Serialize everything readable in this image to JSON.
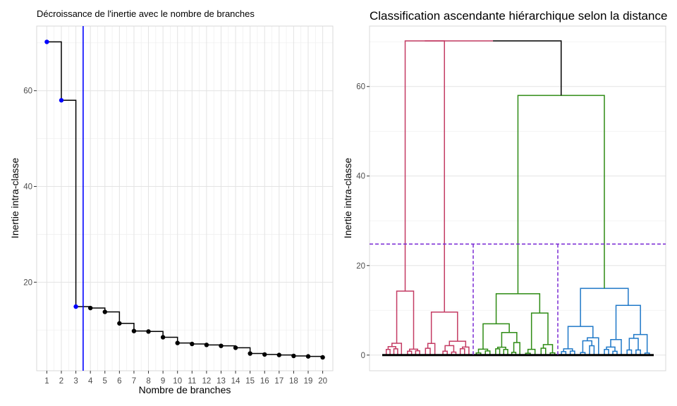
{
  "chart_data": [
    {
      "type": "line",
      "title": "Décroissance de l'inertie avec le nombre de branches",
      "xlabel": "Nombre de branches",
      "ylabel": "Inertie intra-classe",
      "x": [
        1,
        2,
        3,
        4,
        5,
        6,
        7,
        8,
        9,
        10,
        11,
        12,
        13,
        14,
        15,
        16,
        17,
        18,
        19,
        20
      ],
      "y": [
        70.2,
        58.0,
        14.9,
        14.6,
        13.8,
        11.4,
        9.8,
        9.7,
        8.5,
        7.3,
        7.1,
        6.9,
        6.7,
        6.3,
        5.1,
        4.9,
        4.8,
        4.6,
        4.5,
        4.3
      ],
      "highlighted_points": 3,
      "highlight_color": "#0000ff",
      "point_color": "#000000",
      "cut_line_x": 3.5,
      "cut_line_color": "#0000ff",
      "xlim": [
        0.3,
        20.7
      ],
      "ylim": [
        1.5,
        73.5
      ],
      "yticks": [
        20,
        40,
        60
      ],
      "grid": true
    },
    {
      "type": "dendrogram",
      "title": "Classification ascendante hiérarchique selon la distance",
      "xlabel": "",
      "ylabel": "Inertie intra-classe",
      "ylim": [
        -3.5,
        73.5
      ],
      "yticks": [
        0,
        20,
        40,
        60
      ],
      "cut_height": 24.8,
      "cut_color": "#7a2ad4",
      "root_height": 70.2,
      "grid": true,
      "clusters": [
        {
          "color": "#c43b63",
          "height": 70.2,
          "sub_left": 14.3,
          "sub_right": 9.6
        },
        {
          "color": "#2e8b14",
          "height": 58.0,
          "sub_left": 7.0,
          "sub_right": 9.4,
          "inner": 13.7
        },
        {
          "color": "#1f78c8",
          "height": 14.9,
          "sub_left": 6.4,
          "sub_right": 11.1
        }
      ]
    }
  ]
}
